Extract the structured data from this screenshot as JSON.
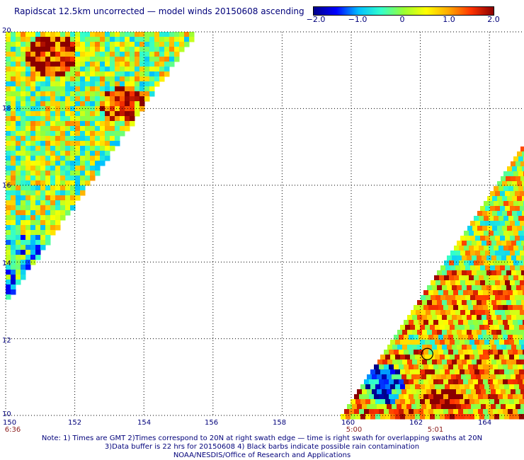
{
  "header": {
    "title": "Rapidscat 12.5km uncorrected — model winds 20150608 ascending"
  },
  "colorbar": {
    "labels": [
      "−2.0",
      "−1.0",
      "0",
      "1.0",
      "2.0"
    ],
    "range": [
      -2.0,
      2.0
    ],
    "colors": [
      "#00008b",
      "#0000ff",
      "#00bfff",
      "#33ffcc",
      "#99ff33",
      "#ffff00",
      "#ffaa00",
      "#ff3300",
      "#8b0000"
    ]
  },
  "map": {
    "lon_range": [
      150,
      165
    ],
    "lat_range": [
      10,
      20
    ],
    "x_ticks": [
      "150",
      "152",
      "154",
      "156",
      "158",
      "160",
      "162",
      "164"
    ],
    "y_ticks": [
      "10",
      "12",
      "14",
      "16",
      "18",
      "20"
    ],
    "times": [
      {
        "text": "6:36",
        "lon": 150.3
      },
      {
        "text": "5:00",
        "lon": 160
      },
      {
        "text": "5:01",
        "lon": 162.4
      }
    ],
    "grid": "dotted",
    "circle_marker": {
      "lon": 162.2,
      "lat": 11.6
    }
  },
  "notes": {
    "line1": "Note: 1) Times are GMT 2)Times correspond to 20N at right swath edge — time is right swath for overlapping swaths at 20N",
    "line2": "3)Data buffer is 22 hrs for 20150608 4) Black barbs indicate possible rain contamination",
    "line3": "NOAA/NESDIS/Office of Research and Applications"
  }
}
